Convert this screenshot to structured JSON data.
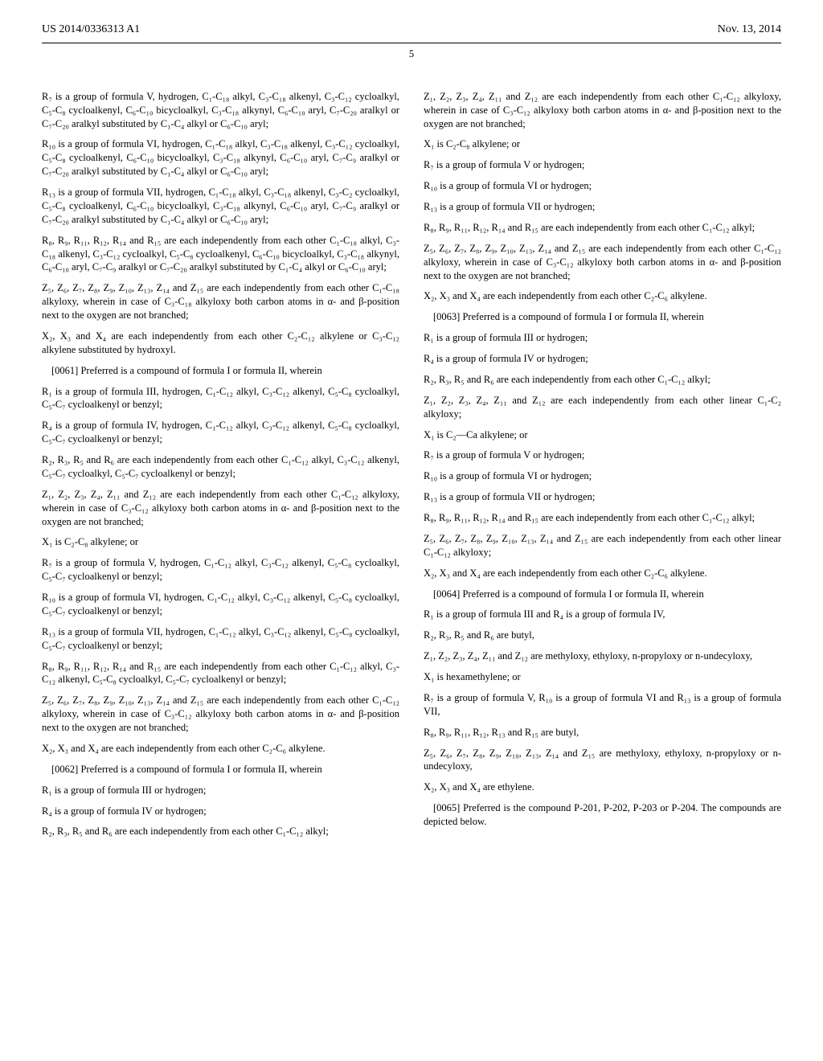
{
  "header": {
    "left": "US 2014/0336313 A1",
    "right": "Nov. 13, 2014"
  },
  "pageNumber": "5",
  "col1": {
    "p1": "R₇ is a group of formula V, hydrogen, C₁-C₁₈ alkyl, C₃-C₁₈ alkenyl, C₃-C₁₂ cycloalkyl, C₅-C₈ cycloalkenyl, C₆-C₁₀ bicycloalkyl, C₃-C₁₈ alkynyl, C₆-C₁₀ aryl, C₇-C₂₀ aralkyl or C₇-C₂₀ aralkyl substituted by C₁-C₄ alkyl or C₆-C₁₀ aryl;",
    "p2": "R₁₀ is a group of formula VI, hydrogen, C₁-C₁₈ alkyl, C₃-C₁₈ alkenyl, C₃-C₁₂ cycloalkyl, C₅-C₈ cycloalkenyl, C₆-C₁₀ bicycloalkyl, C₃-C₁₈ alkynyl, C₆-C₁₀ aryl, C₇-C₉ aralkyl or C₇-C₂₀ aralkyl substituted by C₁-C₄ alkyl or C₆-C₁₀ aryl;",
    "p3": "R₁₃ is a group of formula VII, hydrogen, C₁-C₁₈ alkyl, C₃-C₁₈ alkenyl, C₃-C₂ cycloalkyl, C₅-C₈ cycloalkenyl, C₆-C₁₀ bicycloalkyl, C₃-C₁₈ alkynyl, C₆-C₁₀ aryl, C₇-C₉ aralkyl or C₇-C₂₀ aralkyl substituted by C₁-C₄ alkyl or C₆-C₁₀ aryl;",
    "p4": "R₈, R₉, R₁₁, R₁₂, R₁₄ and R₁₅ are each independently from each other C₁-C₁₈ alkyl, C₃-C₁₈ alkenyl, C₃-C₁₂ cycloalkyl, C₅-C₈ cycloalkenyl, C₆-C₁₀ bicycloalkyl, C₃-C₁₈ alkynyl, C₆-C₁₀ aryl, C₇-C₉ aralkyl or C₇-C₂₀ aralkyl substituted by C₁-C₄ alkyl or C₆-C₁₀ aryl;",
    "p5": "Z₅, Z₆, Z₇, Z₈, Z₉, Z₁₀, Z₁₃, Z₁₄ and Z₁₅ are each independently from each other C₁-C₁₈ alkyloxy, wherein in case of C₃-C₁₈ alkyloxy both carbon atoms in α- and β-position next to the oxygen are not branched;",
    "p6": "X₂, X₃ and X₄ are each independently from each other C₂-C₁₂ alkylene or C₃-C₁₂ alkylene substituted by hydroxyl.",
    "p7": "[0061]   Preferred is a compound of formula I or formula II, wherein",
    "p8": "R₁ is a group of formula III, hydrogen, C₁-C₁₂ alkyl, C₃-C₁₂ alkenyl, C₅-C₈ cycloalkyl, C₅-C₇ cycloalkenyl or benzyl;",
    "p9": "R₄ is a group of formula IV, hydrogen, C₁-C₁₂ alkyl, C₃-C₁₂ alkenyl, C₅-C₈ cycloalkyl, C₅-C₇ cycloalkenyl or benzyl;",
    "p10": "R₂, R₃, R₅ and R₆ are each independently from each other C₁-C₁₂ alkyl, C₃-C₁₂ alkenyl, C₅-C₇ cycloalkyl, C₅-C₇ cycloalkenyl or benzyl;",
    "p11": "Z₁, Z₂, Z₃, Z₄, Z₁₁ and Z₁₂ are each independently from each other C₁-C₁₂ alkyloxy, wherein in case of C₃-C₁₂ alkyloxy both carbon atoms in α- and β-position next to the oxygen are not branched;",
    "p12": "X₁ is C₂-C₈ alkylene; or",
    "p13": "R₇ is a group of formula V, hydrogen, C₁-C₁₂ alkyl, C₃-C₁₂ alkenyl, C₅-C₈ cycloalkyl, C₅-C₇ cycloalkenyl or benzyl;",
    "p14": "R₁₀ is a group of formula VI, hydrogen, C₁-C₁₂ alkyl, C₃-C₁₂ alkenyl, C₅-C₈ cycloalkyl, C₅-C₇ cycloalkenyl or benzyl;",
    "p15": "R₁₃ is a group of formula VII, hydrogen, C₁-C₁₂ alkyl, C₃-C₁₂ alkenyl, C₅-C₈ cycloalkyl, C₅-C₇ cycloalkenyl or benzyl;",
    "p16": "R₈, R₉, R₁₁, R₁₂, R₁₄ and R₁₅ are each independently from each other C₁-C₁₂ alkyl, C₃-C₁₂ alkenyl, C₅-C₈ cycloalkyl, C₅-C₇ cycloalkenyl or benzyl;",
    "p17": "Z₅, Z₆, Z₇, Z₈, Z₉, Z₁₀, Z₁₃, Z₁₄ and Z₁₅ are each independently from each other C₁-C₁₂ alkyloxy, wherein in case of C₃-C₁₂ alkyloxy both carbon atoms in α- and β-position next to the oxygen are not branched;",
    "p18": "X₂, X₃ and X₄ are each independently from each other C₂-C₆ alkylene.",
    "p19": "[0062]   Preferred is a compound of formula I or formula II, wherein",
    "p20": "R₁ is a group of formula III or hydrogen;",
    "p21": "R₄ is a group of formula IV or hydrogen;",
    "p22": "R₂, R₃, R₅ and R₆ are each independently from each other C₁-C₁₂ alkyl;"
  },
  "col2": {
    "p1": "Z₁, Z₂, Z₃, Z₄, Z₁₁ and Z₁₂ are each independently from each other C₁-C₁₂ alkyloxy, wherein in case of C₃-C₁₂ alkyloxy both carbon atoms in α- and β-position next to the oxygen are not branched;",
    "p2": "X₁ is C₂-C₈ alkylene; or",
    "p3": "R₇ is a group of formula V or hydrogen;",
    "p4": "R₁₀ is a group of formula VI or hydrogen;",
    "p5": "R₁₃ is a group of formula VII or hydrogen;",
    "p6": "R₈, R₉, R₁₁, R₁₂, R₁₄ and R₁₅ are each independently from each other C₁-C₁₂ alkyl;",
    "p7": "Z₅, Z₆, Z₇, Z₈, Z₉, Z₁₀, Z₁₃, Z₁₄ and Z₁₅ are each independently from each other C₁-C₁₂ alkyloxy, wherein in case of C₃-C₁₂ alkyloxy both carbon atoms in α- and β-position next to the oxygen are not branched;",
    "p8": "X₂, X₃ and X₄ are each independently from each other C₂-C₆ alkylene.",
    "p9": "[0063]   Preferred is a compound of formula I or formula II, wherein",
    "p10": "R₁ is a group of formula III or hydrogen;",
    "p11": "R₄ is a group of formula IV or hydrogen;",
    "p12": "R₂, R₃, R₅ and R₆ are each independently from each other C₁-C₁₂ alkyl;",
    "p13": "Z₁, Z₂, Z₃, Z₄, Z₁₁ and Z₁₂ are each independently from each other linear C₁-C₂ alkyloxy;",
    "p14": "X₁ is C₂—Ca alkylene; or",
    "p15": "R₇ is a group of formula V or hydrogen;",
    "p16": "R₁₀ is a group of formula VI or hydrogen;",
    "p17": "R₁₃ is a group of formula VII or hydrogen;",
    "p18": "R₈, R₉, R₁₁, R₁₂, R₁₄ and R₁₅ are each independently from each other C₁-C₁₂ alkyl;",
    "p19": "Z₅, Z₆, Z₇, Z₈, Z₉, Z₁₀, Z₁₃, Z₁₄ and Z₁₅ are each independently from each other linear C₁-C₁₂ alkyloxy;",
    "p20": "X₂, X₃ and X₄ are each independently from each other C₂-C₆ alkylene.",
    "p21": "[0064]   Preferred is a compound of formula I or formula II, wherein",
    "p22": "R₁ is a group of formula III and R₄ is a group of formula IV,",
    "p23": "R₂, R₃, R₅ and R₆ are butyl,",
    "p24": "Z₁, Z₂, Z₃, Z₄, Z₁₁ and Z₁₂ are methyloxy, ethyloxy, n-propyloxy or n-undecyloxy,",
    "p25": "X₁ is hexamethylene; or",
    "p26": "R₇ is a group of formula V, R₁₀ is a group of formula VI and R₁₃ is a group of formula VII,",
    "p27": "R₈, R₉, R₁₁, R₁₂, R₁₃ and R₁₅ are butyl,",
    "p28": "Z₅, Z₆, Z₇, Z₈, Z₉, Z₁₀, Z₁₃, Z₁₄ and Z₁₅ are methyloxy, ethyloxy, n-propyloxy or n-undecyloxy,",
    "p29": "X₂, X₃ and X₄ are ethylene.",
    "p30": "[0065]   Preferred is the compound P-201, P-202, P-203 or P-204. The compounds are depicted below."
  }
}
